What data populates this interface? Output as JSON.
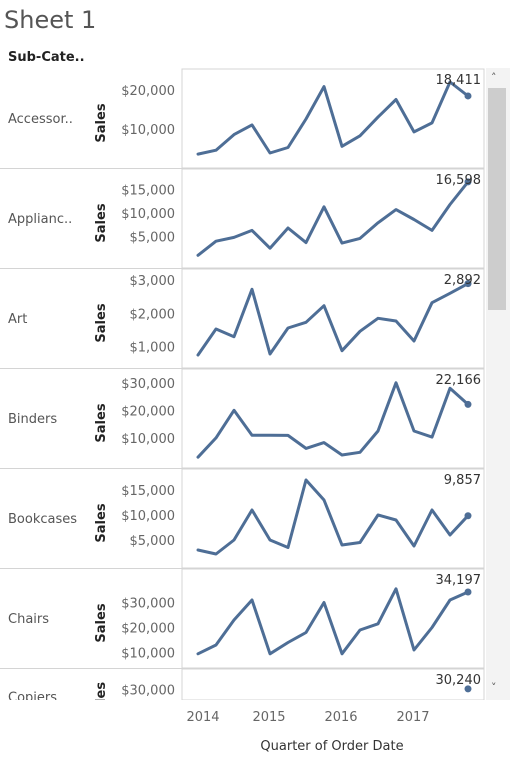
{
  "sheet": {
    "title": "Sheet 1",
    "column_header": "Sub-Cate.."
  },
  "scroll": {
    "up": "˄",
    "down": "˅"
  },
  "chart_data": {
    "type": "line",
    "xlabel": "Quarter of Order Date",
    "x_ticks": [
      "2014",
      "2015",
      "2016",
      "2017"
    ],
    "x": [
      "2014 Q1",
      "2014 Q2",
      "2014 Q3",
      "2014 Q4",
      "2015 Q1",
      "2015 Q2",
      "2015 Q3",
      "2015 Q4",
      "2016 Q1",
      "2016 Q2",
      "2016 Q3",
      "2016 Q4",
      "2017 Q1",
      "2017 Q2",
      "2017 Q3",
      "2017 Q4"
    ],
    "line_color": "#4e6e96",
    "panels": [
      {
        "category": "Accessor..",
        "ylabel": "Sales",
        "ylim": [
          2000,
          22500
        ],
        "ticks": [
          {
            "v": 10000,
            "label": "$10,000"
          },
          {
            "v": 20000,
            "label": "$20,000"
          }
        ],
        "values": [
          3500,
          4500,
          8500,
          11000,
          3800,
          5200,
          12500,
          20800,
          5500,
          8200,
          13000,
          17500,
          9200,
          11500,
          22000,
          18411
        ],
        "last_label": "18,411"
      },
      {
        "category": "Applianc..",
        "ylabel": "Sales",
        "ylim": [
          0,
          17000
        ],
        "ticks": [
          {
            "v": 5000,
            "label": "$5,000"
          },
          {
            "v": 10000,
            "label": "$10,000"
          },
          {
            "v": 15000,
            "label": "$15,000"
          }
        ],
        "values": [
          1000,
          4000,
          4800,
          6300,
          2500,
          6800,
          3700,
          11300,
          3600,
          4600,
          7900,
          10700,
          8600,
          6300,
          11800,
          16598
        ],
        "last_label": "16,598"
      },
      {
        "category": "Art",
        "ylabel": "Sales",
        "ylim": [
          600,
          3000
        ],
        "ticks": [
          {
            "v": 1000,
            "label": "$1,000"
          },
          {
            "v": 2000,
            "label": "$2,000"
          },
          {
            "v": 3000,
            "label": "$3,000"
          }
        ],
        "values": [
          750,
          1530,
          1300,
          2720,
          780,
          1560,
          1730,
          2230,
          880,
          1460,
          1850,
          1770,
          1170,
          2320,
          2600,
          2892
        ],
        "last_label": "2,892"
      },
      {
        "category": "Binders",
        "ylabel": "Sales",
        "ylim": [
          2000,
          31000
        ],
        "ticks": [
          {
            "v": 10000,
            "label": "$10,000"
          },
          {
            "v": 20000,
            "label": "$20,000"
          },
          {
            "v": 30000,
            "label": "$30,000"
          }
        ],
        "values": [
          3000,
          10000,
          20000,
          11000,
          11000,
          10900,
          6200,
          8300,
          3800,
          4800,
          12500,
          30000,
          12500,
          10300,
          28000,
          22166
        ],
        "last_label": "22,166"
      },
      {
        "category": "Bookcases",
        "ylabel": "Sales",
        "ylim": [
          1000,
          17000
        ],
        "ticks": [
          {
            "v": 5000,
            "label": "$5,000"
          },
          {
            "v": 10000,
            "label": "$10,000"
          },
          {
            "v": 15000,
            "label": "$15,000"
          }
        ],
        "values": [
          3000,
          2200,
          5000,
          11000,
          5000,
          3500,
          17000,
          13000,
          4000,
          4500,
          10000,
          9000,
          3800,
          11000,
          6000,
          9857
        ],
        "last_label": "9,857"
      },
      {
        "category": "Chairs",
        "ylabel": "Sales",
        "ylim": [
          7000,
          39000
        ],
        "ticks": [
          {
            "v": 10000,
            "label": "$10,000"
          },
          {
            "v": 20000,
            "label": "$20,000"
          },
          {
            "v": 30000,
            "label": "$30,000"
          }
        ],
        "values": [
          9500,
          13000,
          23000,
          31000,
          9500,
          14000,
          18000,
          30000,
          9500,
          19000,
          21500,
          35500,
          11000,
          20000,
          31000,
          34197
        ],
        "last_label": "34,197"
      },
      {
        "category": "Copiers",
        "ylabel": "Sales",
        "ylim": [
          0,
          34000
        ],
        "ticks": [
          {
            "v": 30000,
            "label": "$30,000"
          }
        ],
        "values": [
          null,
          null,
          null,
          null,
          null,
          null,
          null,
          null,
          null,
          null,
          null,
          null,
          null,
          null,
          null,
          30240
        ],
        "last_label": "30,240"
      }
    ]
  }
}
